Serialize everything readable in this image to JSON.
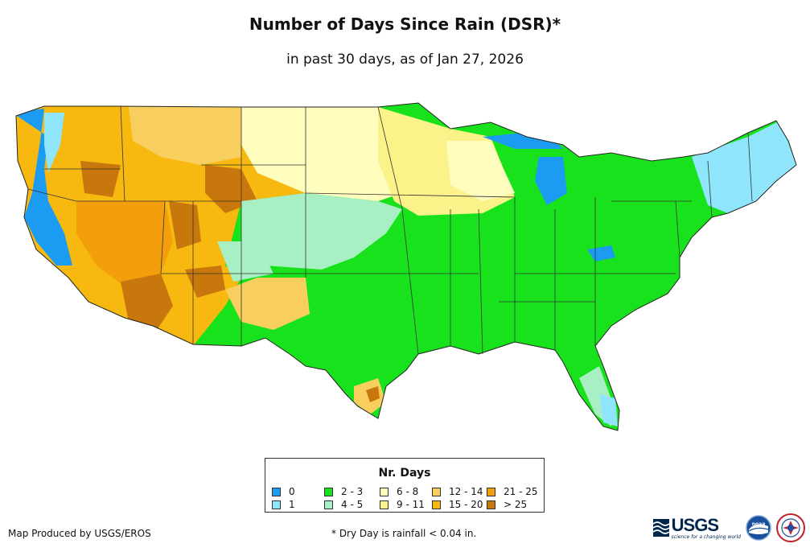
{
  "title": "Number of Days Since Rain (DSR)*",
  "subtitle": "in past 30 days, as of Jan 27, 2026",
  "legend": {
    "title": "Nr. Days",
    "items": [
      {
        "label": "0",
        "color": "#1b9cf2"
      },
      {
        "label": "1",
        "color": "#8fe5fc"
      },
      {
        "label": "2 - 3",
        "color": "#17e21b"
      },
      {
        "label": "4 - 5",
        "color": "#a8f0c4"
      },
      {
        "label": "6 - 8",
        "color": "#fffdbd"
      },
      {
        "label": "9 - 11",
        "color": "#fbf28a"
      },
      {
        "label": "12 - 14",
        "color": "#f8cf5e"
      },
      {
        "label": "15 - 20",
        "color": "#f7b810"
      },
      {
        "label": "21 - 25",
        "color": "#f29f0b"
      },
      {
        "label": "> 25",
        "color": "#c7770c"
      }
    ]
  },
  "footer": {
    "credit": "Map Produced by USGS/EROS",
    "note": "* Dry Day is rainfall < 0.04 in."
  },
  "logos": {
    "usgs": "USGS",
    "usgs_tagline": "science for a changing world",
    "noaa": "noaa",
    "nws": "NATIONAL WEATHER SERVICE"
  }
}
